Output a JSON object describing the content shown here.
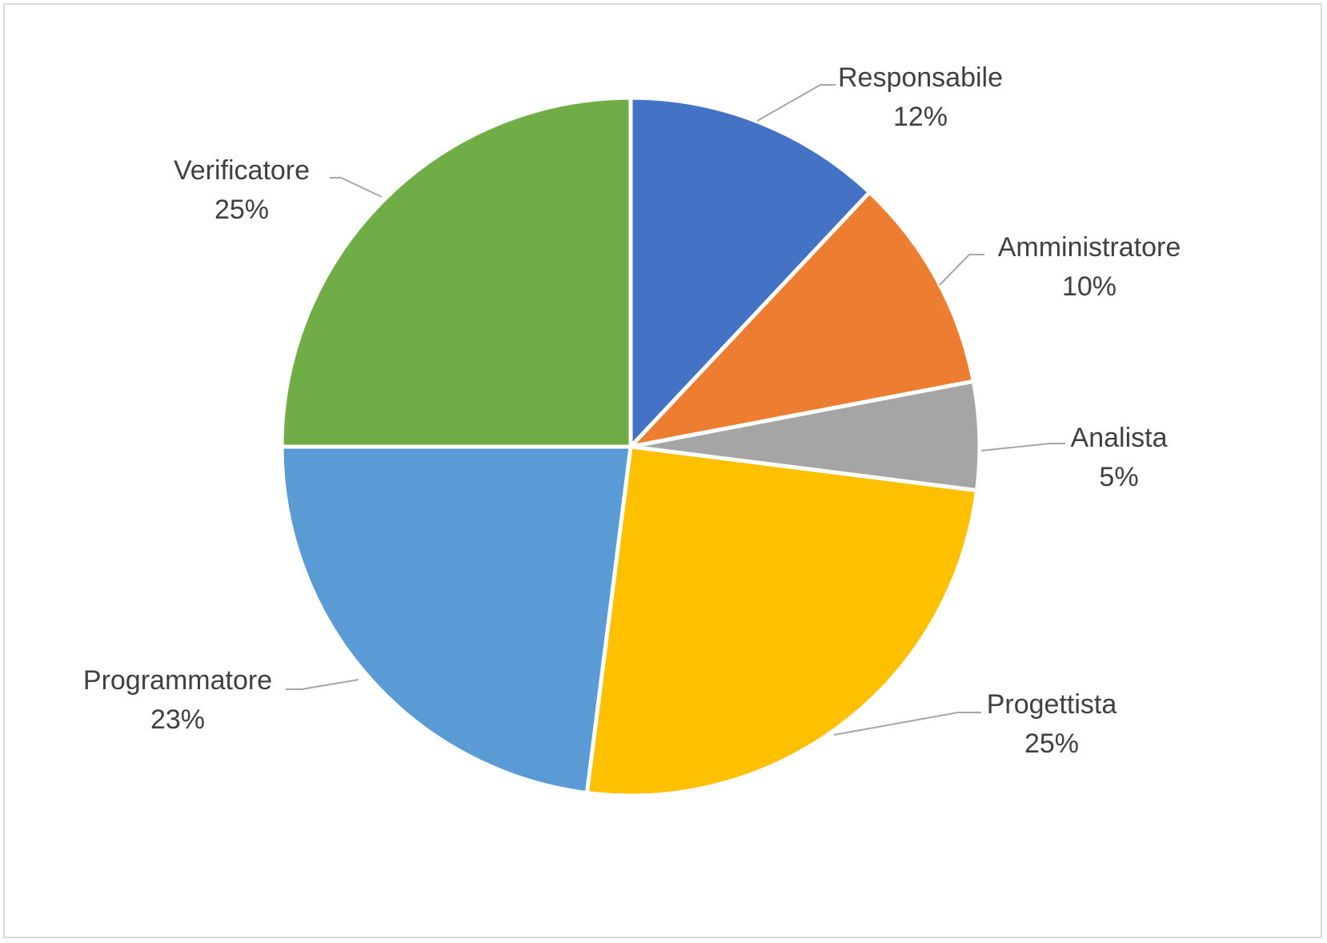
{
  "chart_data": {
    "type": "pie",
    "title": "",
    "slices": [
      {
        "label": "Responsabile",
        "percent_label": "12%",
        "value": 12,
        "color": "#4472C4"
      },
      {
        "label": "Amministratore",
        "percent_label": "10%",
        "value": 10,
        "color": "#ED7D31"
      },
      {
        "label": "Analista",
        "percent_label": "5%",
        "value": 5,
        "color": "#A5A5A5"
      },
      {
        "label": "Progettista",
        "percent_label": "25%",
        "value": 25,
        "color": "#FFC000"
      },
      {
        "label": "Programmatore",
        "percent_label": "23%",
        "value": 23,
        "color": "#5B9BD5"
      },
      {
        "label": "Verificatore",
        "percent_label": "25%",
        "value": 25,
        "color": "#70AD47"
      }
    ],
    "legend": "none",
    "data_labels": "outside-with-leader-lines"
  }
}
